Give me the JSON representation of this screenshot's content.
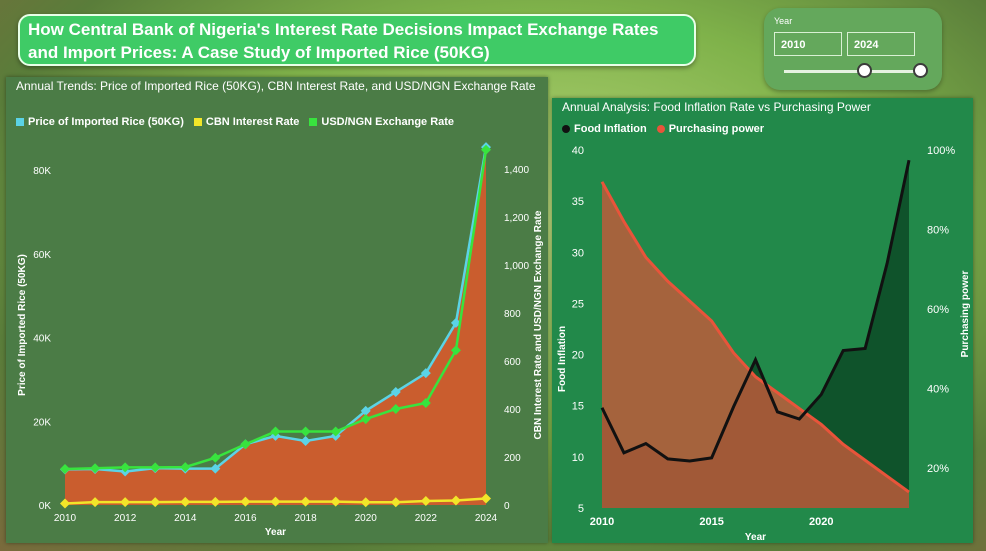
{
  "title": "How Central Bank of Nigeria's Interest Rate Decisions Impact Exchange Rates and Import Prices: A Case Study of Imported Rice (50KG)",
  "slicer": {
    "label": "Year",
    "from": "2010",
    "to": "2024"
  },
  "chart_data": [
    {
      "type": "line",
      "title": "Annual Trends: Price of Imported Rice (50KG), CBN Interest Rate, and USD/NGN Exchange Rate",
      "xlabel": "Year",
      "ylabel": "Price of Imported Rice (50KG)",
      "y2label": "CBN Interest Rate and USD/NGN Exchange Rate",
      "x": [
        2010,
        2011,
        2012,
        2013,
        2014,
        2015,
        2016,
        2017,
        2018,
        2019,
        2020,
        2021,
        2022,
        2023,
        2024
      ],
      "xticks": [
        "2010",
        "2012",
        "2014",
        "2016",
        "2018",
        "2020",
        "2022",
        "2024"
      ],
      "yticks": [
        "0K",
        "20K",
        "40K",
        "60K",
        "80K"
      ],
      "y2ticks": [
        "0",
        "200",
        "400",
        "600",
        "800",
        "1,000",
        "1,200",
        "1,400"
      ],
      "ylim": [
        0,
        86000
      ],
      "y2lim": [
        0,
        1500
      ],
      "legend_position": "top-left",
      "grid": false,
      "series": [
        {
          "name": "Price of Imported Rice (50KG)",
          "axis": "left",
          "color": "#5bd3e6",
          "values": [
            8500,
            8600,
            8000,
            8800,
            8700,
            8700,
            14500,
            16500,
            15300,
            16500,
            22500,
            27000,
            31500,
            43500,
            85500
          ]
        },
        {
          "name": "CBN Interest Rate",
          "axis": "right",
          "color": "#f2e629",
          "values": [
            6,
            12,
            12,
            12,
            13,
            13,
            14,
            14,
            14,
            14,
            11.5,
            11.5,
            16.5,
            18.75,
            27.25
          ]
        },
        {
          "name": "USD/NGN Exchange Rate",
          "axis": "right",
          "color": "#38e33e",
          "values": [
            150,
            153,
            157,
            157,
            158,
            197,
            253,
            306,
            306,
            306,
            358,
            400,
            425,
            645,
            1480
          ]
        }
      ],
      "area_color": "#d55a2d"
    },
    {
      "type": "area",
      "title": "Annual Analysis: Food Inflation Rate vs Purchasing Power",
      "xlabel": "Year",
      "ylabel": "Food Inflation",
      "y2label": "Purchasing power",
      "x": [
        2010,
        2011,
        2012,
        2013,
        2014,
        2015,
        2016,
        2017,
        2018,
        2019,
        2020,
        2021,
        2022,
        2023,
        2024
      ],
      "xticks": [
        "2010",
        "2015",
        "2020"
      ],
      "yticks": [
        "5",
        "10",
        "15",
        "20",
        "25",
        "30",
        "35",
        "40"
      ],
      "y2ticks": [
        "20%",
        "40%",
        "60%",
        "80%",
        "100%"
      ],
      "ylim": [
        5,
        40
      ],
      "y2lim": [
        0.1,
        1.0
      ],
      "legend_position": "top-left",
      "grid": false,
      "series": [
        {
          "name": "Food Inflation",
          "axis": "left",
          "color": "#111111",
          "values": [
            14.8,
            10.4,
            11.3,
            9.8,
            9.6,
            9.9,
            14.9,
            19.5,
            14.4,
            13.7,
            16.1,
            20.4,
            20.6,
            28.9,
            39.0
          ]
        },
        {
          "name": "Purchasing power",
          "axis": "right",
          "color": "#e8543a",
          "values": [
            0.92,
            0.82,
            0.73,
            0.67,
            0.62,
            0.57,
            0.49,
            0.43,
            0.39,
            0.35,
            0.31,
            0.26,
            0.22,
            0.18,
            0.14
          ]
        }
      ]
    }
  ]
}
